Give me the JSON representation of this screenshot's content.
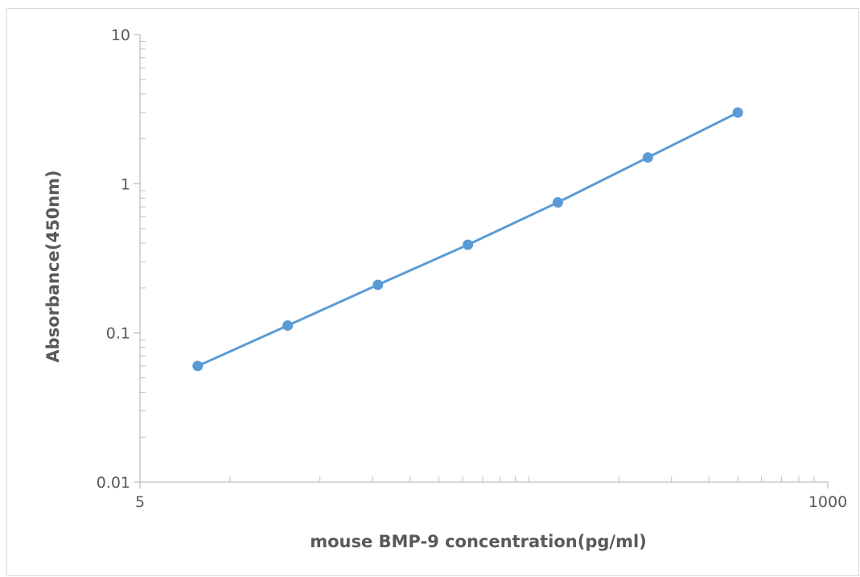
{
  "chart_data": {
    "type": "line",
    "title": "",
    "xlabel": "mouse BMP-9 concentration(pg/ml)",
    "ylabel": "Absorbance(450nm)",
    "x_scale": "log",
    "y_scale": "log",
    "xlim": [
      5,
      1000
    ],
    "ylim": [
      0.01,
      10
    ],
    "x_tick_labels": [
      "5",
      "1000"
    ],
    "y_tick_labels": [
      "0.01",
      "0.1",
      "1",
      "10"
    ],
    "grid": false,
    "legend": "none",
    "line_color": "#5b9bd5",
    "marker_color": "#5b9bd5",
    "series": [
      {
        "x": [
          7.8,
          15.6,
          31.25,
          62.5,
          125,
          250,
          500
        ],
        "y": [
          0.06,
          0.112,
          0.21,
          0.39,
          0.75,
          1.5,
          3.0
        ]
      }
    ]
  }
}
